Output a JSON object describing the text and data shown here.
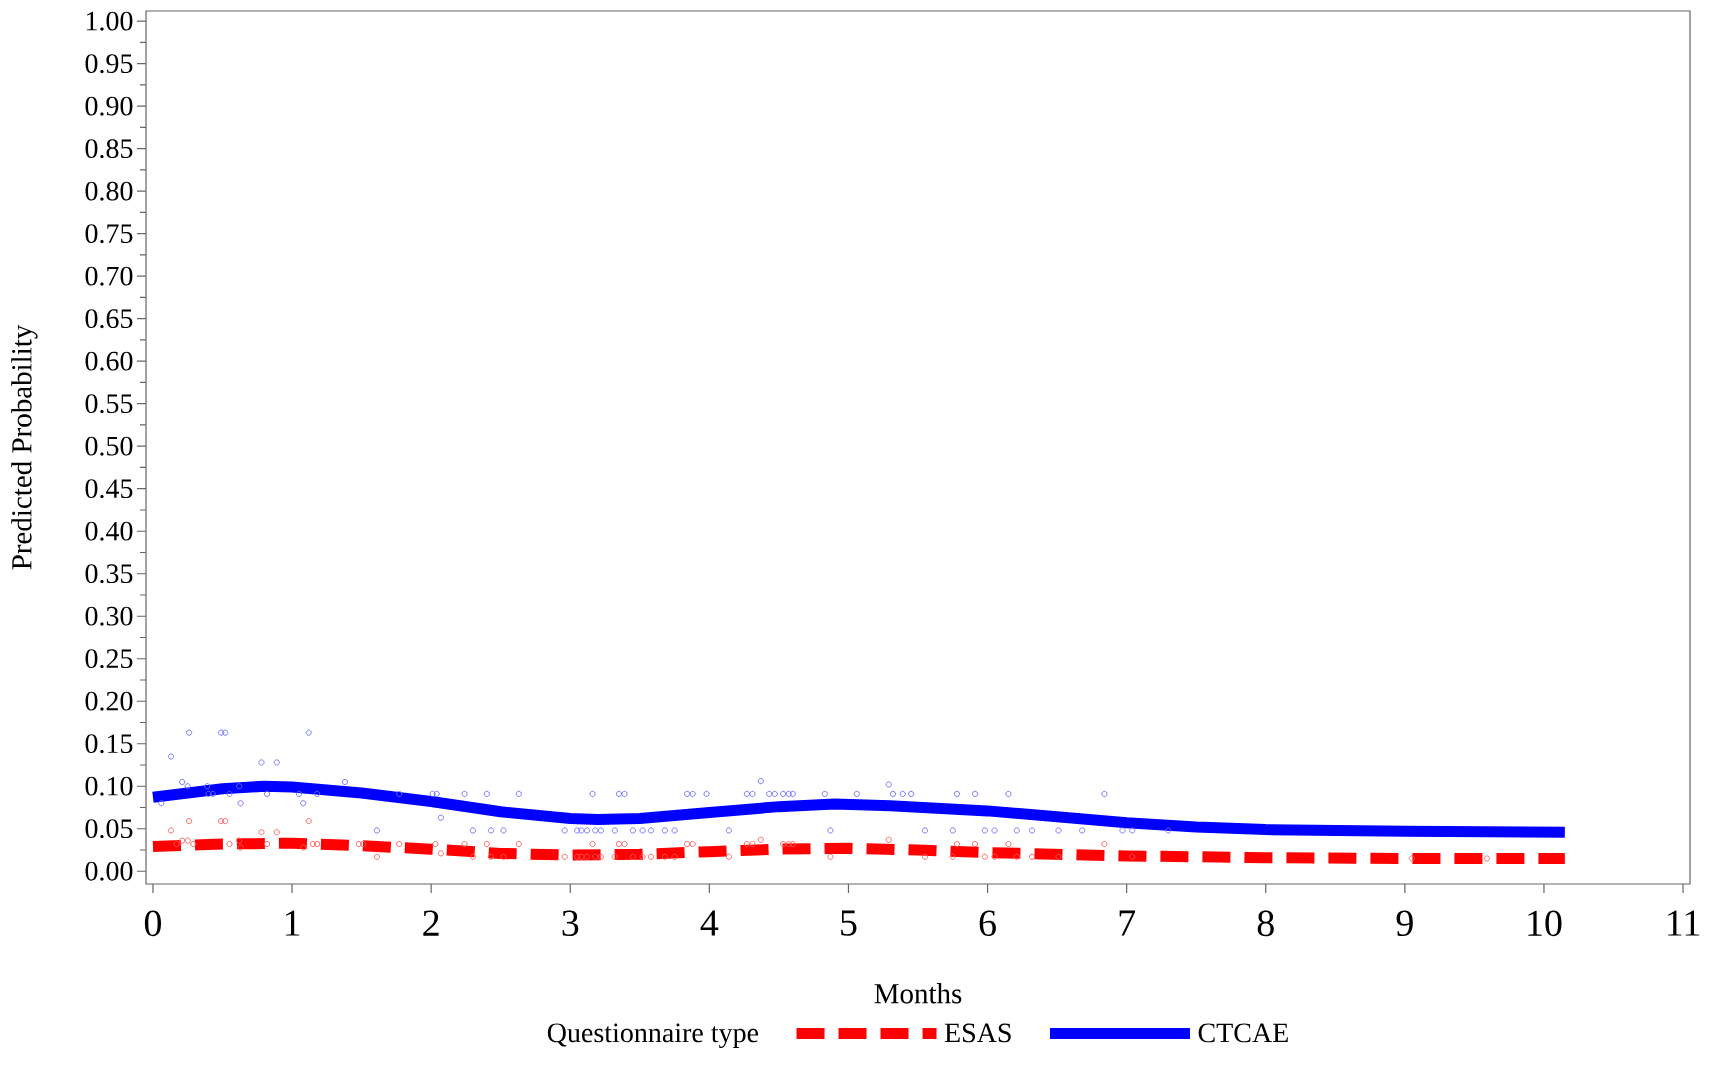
{
  "chart_data": {
    "type": "line",
    "xlabel": "Months",
    "ylabel": "Predicted Probability",
    "legend_title": "Questionnaire type",
    "xlim": [
      -0.05,
      11.05
    ],
    "ylim": [
      -0.015,
      1.012
    ],
    "xticks": [
      0,
      1,
      2,
      3,
      4,
      5,
      6,
      7,
      8,
      9,
      10,
      11
    ],
    "yticks": [
      {
        "value": 0,
        "label": "0.00"
      },
      {
        "value": 0.05,
        "label": "0.05"
      },
      {
        "value": 0.1,
        "label": "0.10"
      },
      {
        "value": 0.15,
        "label": "0.15"
      },
      {
        "value": 0.2,
        "label": "0.20"
      },
      {
        "value": 0.25,
        "label": "0.25"
      },
      {
        "value": 0.3,
        "label": "0.30"
      },
      {
        "value": 0.35,
        "label": "0.35"
      },
      {
        "value": 0.4,
        "label": "0.40"
      },
      {
        "value": 0.45,
        "label": "0.45"
      },
      {
        "value": 0.5,
        "label": "0.50"
      },
      {
        "value": 0.55,
        "label": "0.55"
      },
      {
        "value": 0.6,
        "label": "0.60"
      },
      {
        "value": 0.65,
        "label": "0.65"
      },
      {
        "value": 0.7,
        "label": "0.70"
      },
      {
        "value": 0.75,
        "label": "0.75"
      },
      {
        "value": 0.8,
        "label": "0.80"
      },
      {
        "value": 0.85,
        "label": "0.85"
      },
      {
        "value": 0.9,
        "label": "0.90"
      },
      {
        "value": 0.95,
        "label": "0.95"
      },
      {
        "value": 1,
        "label": "1.00"
      }
    ],
    "legend": "bottom",
    "grid": false,
    "series": [
      {
        "type": "scatter",
        "color": "#6b6bff",
        "marker": "circle",
        "x": [
          0.26,
          0.49,
          0.52,
          1.12,
          0.13,
          0.78,
          0.89,
          0.21,
          1.38,
          0.25,
          0.39,
          0.62,
          0.4,
          0.43,
          0.55,
          0.82,
          1.05,
          1.18,
          1.77,
          2.01,
          2.04,
          2.24,
          2.4,
          2.63,
          3.16,
          3.35,
          3.39,
          3.84,
          0.06,
          0.63,
          1.08,
          2.07,
          1.61,
          2.3,
          2.43,
          2.52,
          2.96,
          3.05,
          3.08,
          3.12,
          3.18,
          3.22,
          3.32,
          3.45,
          3.52,
          3.58,
          3.68,
          3.75,
          3.88,
          3.98,
          4.27,
          4.31,
          4.43,
          4.47,
          4.53,
          4.57,
          4.6,
          4.83,
          5.06,
          5.32,
          5.39,
          5.45,
          5.78,
          5.91,
          6.15,
          6.84,
          4.37,
          5.29,
          4.14,
          4.87,
          5.55,
          5.75,
          5.98,
          6.05,
          6.21,
          6.32,
          6.51,
          6.68,
          6.97,
          7.04,
          7.3
        ],
        "values": [
          0.163,
          0.163,
          0.163,
          0.163,
          0.135,
          0.128,
          0.128,
          0.105,
          0.105,
          0.1,
          0.1,
          0.1,
          0.091,
          0.091,
          0.091,
          0.091,
          0.091,
          0.091,
          0.091,
          0.091,
          0.091,
          0.091,
          0.091,
          0.091,
          0.091,
          0.091,
          0.091,
          0.091,
          0.08,
          0.08,
          0.08,
          0.063,
          0.048,
          0.048,
          0.048,
          0.048,
          0.048,
          0.048,
          0.048,
          0.048,
          0.048,
          0.048,
          0.048,
          0.048,
          0.048,
          0.048,
          0.048,
          0.048,
          0.091,
          0.091,
          0.091,
          0.091,
          0.091,
          0.091,
          0.091,
          0.091,
          0.091,
          0.091,
          0.091,
          0.091,
          0.091,
          0.091,
          0.091,
          0.091,
          0.091,
          0.091,
          0.106,
          0.102,
          0.048,
          0.048,
          0.048,
          0.048,
          0.048,
          0.048,
          0.048,
          0.048,
          0.048,
          0.048,
          0.048,
          0.048,
          0.048
        ]
      },
      {
        "type": "scatter",
        "color": "#ff5a5a",
        "marker": "circle",
        "x": [
          0.26,
          0.49,
          0.52,
          1.12,
          0.13,
          0.78,
          0.89,
          0.21,
          0.25,
          0.62,
          0.17,
          0.29,
          0.55,
          0.82,
          1.15,
          1.18,
          1.48,
          1.51,
          1.77,
          2.03,
          2.24,
          2.4,
          2.63,
          3.16,
          3.35,
          3.39,
          3.84,
          0.63,
          1.08,
          2.07,
          1.61,
          2.3,
          2.43,
          2.52,
          2.96,
          3.05,
          3.08,
          3.12,
          3.18,
          3.22,
          3.32,
          3.45,
          3.52,
          3.58,
          3.68,
          3.75,
          3.88,
          4.27,
          4.31,
          4.53,
          4.57,
          4.6,
          5.78,
          5.91,
          6.15,
          6.84,
          4.37,
          5.29,
          4.14,
          4.87,
          5.55,
          5.75,
          5.98,
          6.05,
          6.21,
          6.32,
          6.51,
          7.04,
          9.05,
          9.59
        ],
        "values": [
          0.059,
          0.059,
          0.059,
          0.059,
          0.048,
          0.046,
          0.046,
          0.036,
          0.036,
          0.036,
          0.032,
          0.032,
          0.032,
          0.032,
          0.032,
          0.032,
          0.032,
          0.032,
          0.032,
          0.032,
          0.032,
          0.032,
          0.032,
          0.032,
          0.032,
          0.032,
          0.032,
          0.028,
          0.028,
          0.021,
          0.017,
          0.017,
          0.017,
          0.017,
          0.017,
          0.017,
          0.017,
          0.017,
          0.017,
          0.017,
          0.017,
          0.017,
          0.017,
          0.017,
          0.017,
          0.017,
          0.032,
          0.032,
          0.032,
          0.032,
          0.032,
          0.032,
          0.032,
          0.032,
          0.032,
          0.032,
          0.037,
          0.037,
          0.017,
          0.017,
          0.017,
          0.017,
          0.017,
          0.017,
          0.017,
          0.017,
          0.017,
          0.017,
          0.015,
          0.015
        ]
      },
      {
        "name": "ESAS",
        "color": "#ff0000",
        "line_style": "dashed",
        "x": [
          0,
          0.5,
          1,
          1.5,
          2,
          2.5,
          3,
          3.5,
          4,
          4.5,
          5,
          5.5,
          6,
          7,
          8,
          9,
          10.15
        ],
        "values": [
          0.029,
          0.032,
          0.033,
          0.03,
          0.026,
          0.021,
          0.019,
          0.02,
          0.023,
          0.026,
          0.027,
          0.025,
          0.022,
          0.018,
          0.016,
          0.015,
          0.015
        ]
      },
      {
        "name": "CTCAE",
        "color": "#0000ff",
        "line_style": "solid",
        "x": [
          0,
          0.5,
          0.8,
          1,
          1.5,
          2,
          2.5,
          3,
          3.2,
          3.5,
          4,
          4.5,
          4.9,
          5.3,
          6,
          6.5,
          7,
          7.5,
          8,
          9,
          10.15
        ],
        "values": [
          0.087,
          0.097,
          0.1,
          0.099,
          0.092,
          0.082,
          0.07,
          0.062,
          0.061,
          0.062,
          0.069,
          0.076,
          0.079,
          0.077,
          0.071,
          0.064,
          0.057,
          0.052,
          0.049,
          0.047,
          0.046
        ]
      }
    ]
  }
}
